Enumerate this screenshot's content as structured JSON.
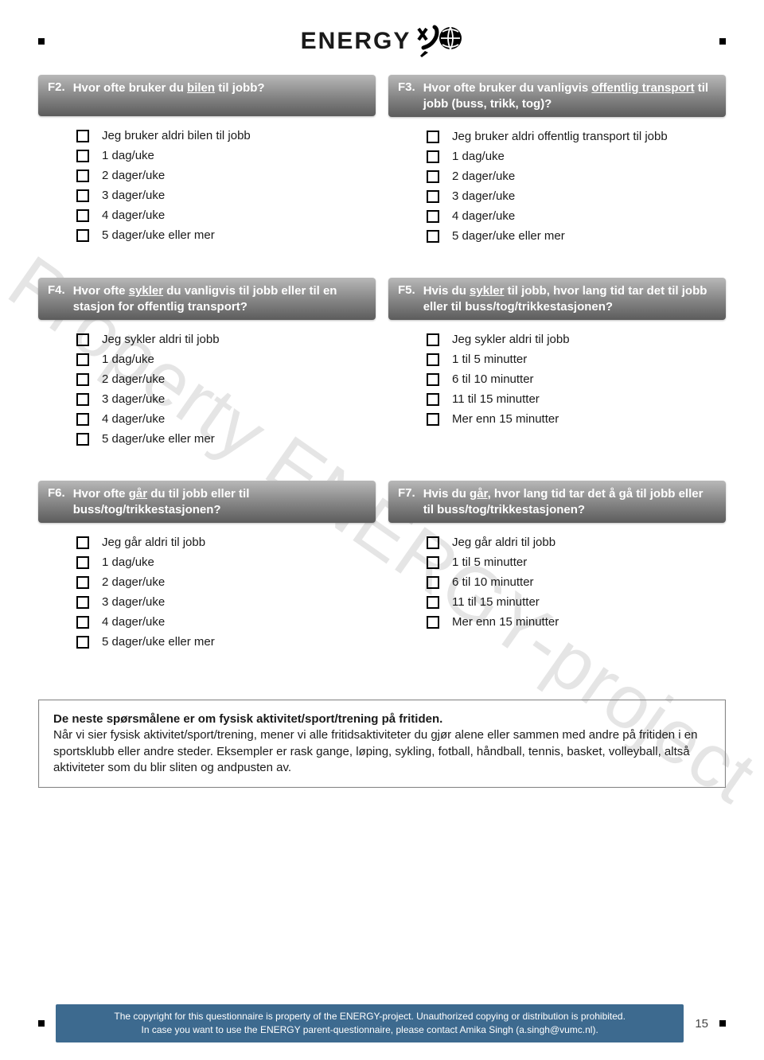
{
  "logo_text": "ENERGY",
  "watermark": "Property ENERGY-project",
  "questions": {
    "f2": {
      "num": "F2.",
      "text": "Hvor ofte bruker du <u>bilen</u> til jobb?",
      "options": [
        "Jeg bruker aldri bilen til jobb",
        "1 dag/uke",
        "2 dager/uke",
        "3 dager/uke",
        "4 dager/uke",
        "5 dager/uke eller mer"
      ]
    },
    "f3": {
      "num": "F3.",
      "text": "Hvor ofte bruker du vanligvis <u>offentlig transport</u> til jobb (buss, trikk, tog)?",
      "options": [
        "Jeg bruker aldri offentlig transport til jobb",
        "1 dag/uke",
        "2 dager/uke",
        "3 dager/uke",
        "4 dager/uke",
        "5 dager/uke eller mer"
      ]
    },
    "f4": {
      "num": "F4.",
      "text": "Hvor ofte <u>sykler</u> du vanligvis til jobb eller til en stasjon for offentlig transport?",
      "options": [
        "Jeg sykler aldri til jobb",
        "1 dag/uke",
        "2 dager/uke",
        "3 dager/uke",
        "4 dager/uke",
        "5 dager/uke eller mer"
      ]
    },
    "f5": {
      "num": "F5.",
      "text": "Hvis du <u>sykler</u> til jobb, hvor lang tid tar det til jobb eller til buss/tog/trikkestasjonen?",
      "options": [
        "Jeg sykler aldri til jobb",
        "1 til 5 minutter",
        "6 til 10 minutter",
        "11 til 15 minutter",
        "Mer enn 15 minutter"
      ]
    },
    "f6": {
      "num": "F6.",
      "text": "Hvor ofte <u>går</u> du til jobb eller til buss/tog/trikkestasjonen?",
      "options": [
        "Jeg går aldri til jobb",
        "1 dag/uke",
        "2 dager/uke",
        "3 dager/uke",
        "4 dager/uke",
        "5 dager/uke eller mer"
      ]
    },
    "f7": {
      "num": "F7.",
      "text": "Hvis du <u>går</u>, hvor lang tid tar det å gå til jobb eller til buss/tog/trikkestasjonen?",
      "options": [
        "Jeg går aldri til jobb",
        "1 til 5 minutter",
        "6 til 10 minutter",
        "11 til 15 minutter",
        "Mer enn 15 minutter"
      ]
    }
  },
  "infobox": {
    "bold": "De neste spørsmålene er om fysisk aktivitet/sport/trening på fritiden.",
    "body": "Når vi sier fysisk aktivitet/sport/trening, mener vi alle fritidsaktiviteter du gjør alene eller sammen med andre på fritiden i en sportsklubb eller andre steder. Eksempler er rask gange, løping, sykling, fotball, håndball, tennis, basket, volleyball, altså aktiviteter som du blir sliten og andpusten av."
  },
  "footer": {
    "line1": "The copyright for this questionnaire is property of the ENERGY-project. Unauthorized copying or distribution is prohibited.",
    "line2": "In case you want to use the ENERGY parent-questionnaire, please contact Amika Singh (a.singh@vumc.nl).",
    "page": "15"
  },
  "colors": {
    "header_grad_top": "#b8b8b8",
    "header_grad_bottom": "#5c5c5c",
    "footer_bg": "#3d6a8f"
  }
}
